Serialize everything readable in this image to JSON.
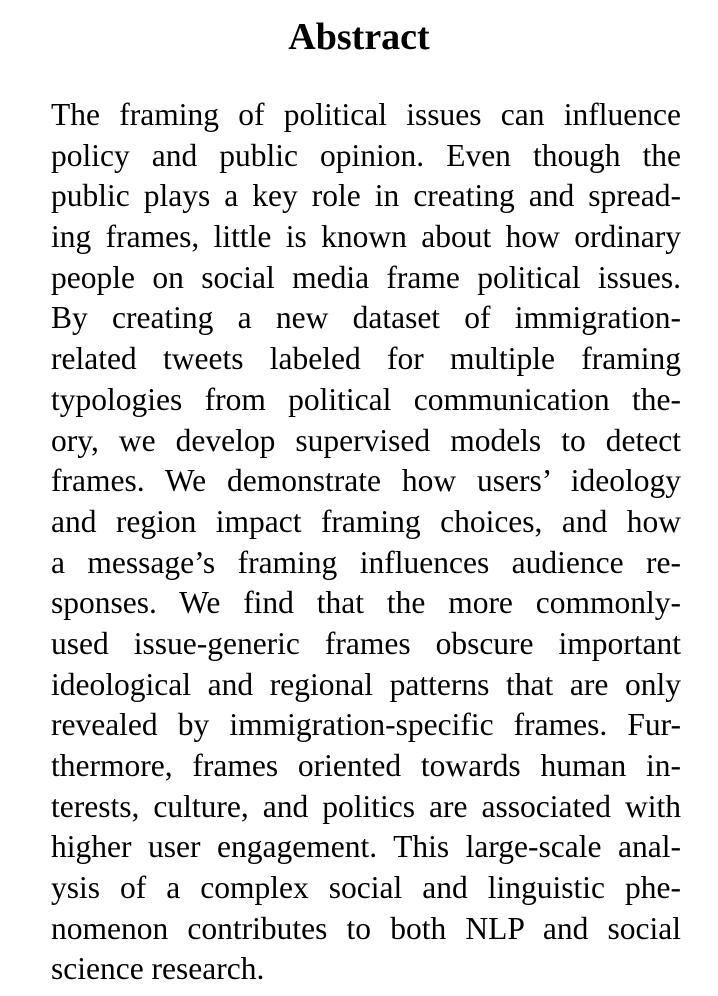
{
  "heading": "Abstract",
  "lines": [
    "The framing of political issues can influence",
    "policy and public opinion.  Even though the",
    "public plays a key role in creating and spread-",
    "ing frames, little is known about how ordinary",
    "people on social media frame political issues.",
    "By creating a new dataset of immigration-",
    "related tweets labeled for multiple framing",
    "typologies from political communication the-",
    "ory, we develop supervised models to detect",
    "frames.  We demonstrate how users’ ideology",
    "and region impact framing choices, and how",
    "a message’s framing influences audience re-",
    "sponses.  We find that the more commonly-",
    "used issue-generic frames obscure important",
    "ideological and regional patterns that are only",
    "revealed by immigration-specific frames. Fur-",
    "thermore, frames oriented towards human in-",
    "terests, culture, and politics are associated with",
    "higher user engagement. This large-scale anal-",
    "ysis of a complex social and linguistic phe-",
    "nomenon contributes to both NLP and social",
    "science research."
  ]
}
